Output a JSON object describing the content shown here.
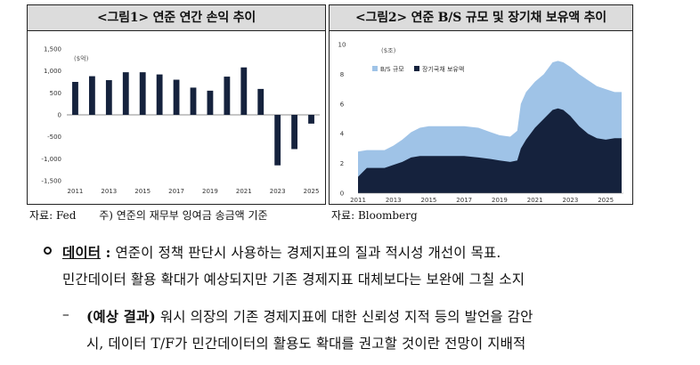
{
  "figure1": {
    "title": "<그림1> 연준 연간 손익 추이",
    "unit_note": "($억)",
    "source": "자료: Fed",
    "footnote": "주) 연준의 재무부 잉여금 송금액 기준"
  },
  "figure2": {
    "title": "<그림2> 연준 B/S 규모 및 장기채 보유액 추이",
    "unit_note": "($조)",
    "legend": [
      "B/S 규모",
      "장기국채 보유액"
    ],
    "source": "자료: Bloomberg"
  },
  "chart_data": [
    {
      "type": "bar",
      "categories": [
        "2011",
        "2012",
        "2013",
        "2014",
        "2015",
        "2016",
        "2017",
        "2018",
        "2019",
        "2020",
        "2021",
        "2022",
        "2023",
        "2024",
        "2025"
      ],
      "x_tick_labels": [
        "2011",
        "2013",
        "2015",
        "2017",
        "2019",
        "2021",
        "2023",
        "2025"
      ],
      "values": [
        750,
        880,
        790,
        970,
        970,
        920,
        800,
        620,
        550,
        870,
        1080,
        590,
        -1150,
        -780,
        -200
      ],
      "ylim": [
        -1500,
        1500
      ],
      "y_ticks": [
        1500,
        1000,
        500,
        0,
        -500,
        -1000,
        -1500
      ],
      "y_tick_labels": [
        "1,500",
        "1,000",
        "500",
        "0",
        "-500",
        "-1,000",
        "-1,500"
      ],
      "color": "#15223d"
    },
    {
      "type": "area",
      "x": [
        2011.0,
        2011.5,
        2012.0,
        2012.5,
        2013.0,
        2013.5,
        2014.0,
        2014.5,
        2015.0,
        2016.0,
        2017.0,
        2017.8,
        2018.5,
        2019.0,
        2019.6,
        2020.0,
        2020.2,
        2020.5,
        2021.0,
        2021.5,
        2022.0,
        2022.3,
        2022.6,
        2023.0,
        2023.5,
        2024.0,
        2024.5,
        2025.0,
        2025.5,
        2025.9
      ],
      "series": [
        {
          "name": "B/S 규모",
          "color": "#9fc3e7",
          "values": [
            2.8,
            2.9,
            2.9,
            2.9,
            3.2,
            3.6,
            4.1,
            4.4,
            4.5,
            4.5,
            4.5,
            4.4,
            4.1,
            3.9,
            3.8,
            4.2,
            6.0,
            6.8,
            7.5,
            8.0,
            8.8,
            8.9,
            8.8,
            8.5,
            8.0,
            7.6,
            7.2,
            7.0,
            6.8,
            6.8
          ]
        },
        {
          "name": "장기국채 보유액",
          "color": "#15223d",
          "values": [
            1.1,
            1.7,
            1.7,
            1.7,
            1.9,
            2.1,
            2.4,
            2.5,
            2.5,
            2.5,
            2.5,
            2.4,
            2.3,
            2.2,
            2.1,
            2.2,
            3.0,
            3.6,
            4.4,
            5.0,
            5.6,
            5.7,
            5.6,
            5.2,
            4.5,
            4.0,
            3.7,
            3.6,
            3.7,
            3.7
          ]
        }
      ],
      "xlim": [
        2011,
        2026
      ],
      "x_tick_labels": [
        "2011",
        "2013",
        "2015",
        "2017",
        "2019",
        "2021",
        "2023",
        "2025"
      ],
      "ylim": [
        0,
        10
      ],
      "y_tick_labels": [
        "0",
        "2",
        "4",
        "6",
        "8",
        "10"
      ]
    }
  ],
  "body": {
    "bullet_keyword": "데이터",
    "bullet_colon": " :",
    "bullet_line1": " 연준이 정책 판단시 사용하는 경제지표의 질과 적시성 개선이 목표.",
    "bullet_line2": "민간데이터 활용 확대가 예상되지만 기존 경제지표 대체보다는 보완에 그칠 소지",
    "sub_dash": "–",
    "sub_bold": "(예상 결과)",
    "sub_line1": " 워시 의장의 기존 경제지표에 대한 신뢰성 지적 등의 발언을 감안",
    "sub_line2": "시, 데이터 T/F가 민간데이터의 활용도 확대를 권고할 것이란 전망이 지배적"
  }
}
